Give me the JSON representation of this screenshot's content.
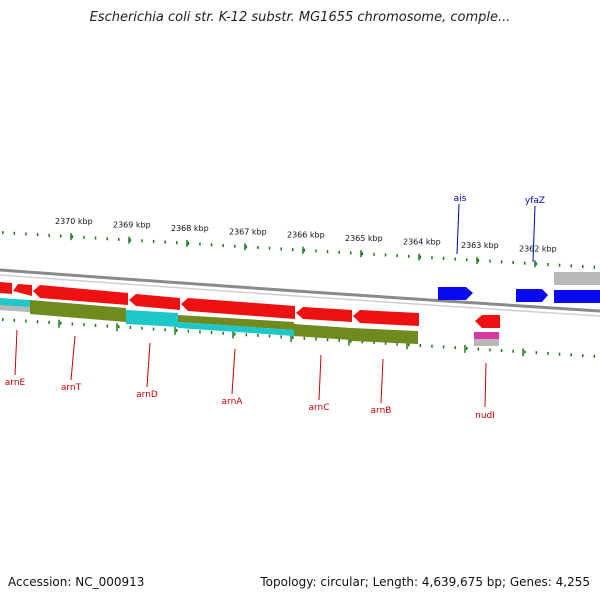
{
  "title": "Escherichia coli str. K-12 substr. MG1655 chromosome, comple...",
  "footer": {
    "accession": "Accession: NC_000913",
    "summary": "Topology: circular; Length: 4,639,675 bp; Genes: 4,255"
  },
  "colors": {
    "backbone": "#8a8a8a",
    "forward_gene": "#0a0aee",
    "reverse_gene": "#ee1111",
    "forward_cds": "#b8b8b8",
    "reverse_cds_olive": "#6f8a1e",
    "reverse_cds_cyan": "#1ec8c8",
    "tick": "#1a7a1a",
    "reverse_label": "#cc0000",
    "forward_label": "#0000bb"
  },
  "ticks": [
    {
      "kbp": 2370,
      "label": "2370 kbp"
    },
    {
      "kbp": 2369,
      "label": "2369 kbp"
    },
    {
      "kbp": 2368,
      "label": "2368 kbp"
    },
    {
      "kbp": 2367,
      "label": "2367 kbp"
    },
    {
      "kbp": 2366,
      "label": "2366 kbp"
    },
    {
      "kbp": 2365,
      "label": "2365 kbp"
    },
    {
      "kbp": 2364,
      "label": "2364 kbp"
    },
    {
      "kbp": 2363,
      "label": "2363 kbp"
    },
    {
      "kbp": 2362,
      "label": "2362 kbp"
    }
  ],
  "genes": [
    {
      "name": "arnE",
      "strand": "reverse"
    },
    {
      "name": "arnT",
      "strand": "reverse"
    },
    {
      "name": "arnD",
      "strand": "reverse"
    },
    {
      "name": "arnA",
      "strand": "reverse"
    },
    {
      "name": "arnC",
      "strand": "reverse"
    },
    {
      "name": "arnB",
      "strand": "reverse"
    },
    {
      "name": "nudI",
      "strand": "reverse"
    },
    {
      "name": "ais",
      "strand": "forward"
    },
    {
      "name": "yfaZ",
      "strand": "forward"
    }
  ]
}
